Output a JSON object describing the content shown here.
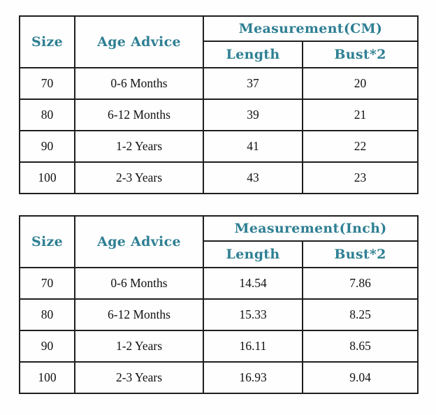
{
  "colors": {
    "header_text": "#2e7f93",
    "border": "#1f1f1f",
    "body_text": "#111111",
    "background": "#fefefe"
  },
  "tables": [
    {
      "unit": "CM",
      "header": {
        "size": "Size",
        "age": "Age Advice",
        "measurement": "Measurement(CM)",
        "length": "Length",
        "bust": "Bust*2"
      },
      "rows": [
        {
          "size": "70",
          "age": "0-6 Months",
          "length": "37",
          "bust": "20"
        },
        {
          "size": "80",
          "age": "6-12 Months",
          "length": "39",
          "bust": "21"
        },
        {
          "size": "90",
          "age": "1-2 Years",
          "length": "41",
          "bust": "22"
        },
        {
          "size": "100",
          "age": "2-3 Years",
          "length": "43",
          "bust": "23"
        }
      ]
    },
    {
      "unit": "Inch",
      "header": {
        "size": "Size",
        "age": "Age Advice",
        "measurement": "Measurement(Inch)",
        "length": "Length",
        "bust": "Bust*2"
      },
      "rows": [
        {
          "size": "70",
          "age": "0-6 Months",
          "length": "14.54",
          "bust": "7.86"
        },
        {
          "size": "80",
          "age": "6-12 Months",
          "length": "15.33",
          "bust": "8.25"
        },
        {
          "size": "90",
          "age": "1-2 Years",
          "length": "16.11",
          "bust": "8.65"
        },
        {
          "size": "100",
          "age": "2-3 Years",
          "length": "16.93",
          "bust": "9.04"
        }
      ]
    }
  ]
}
